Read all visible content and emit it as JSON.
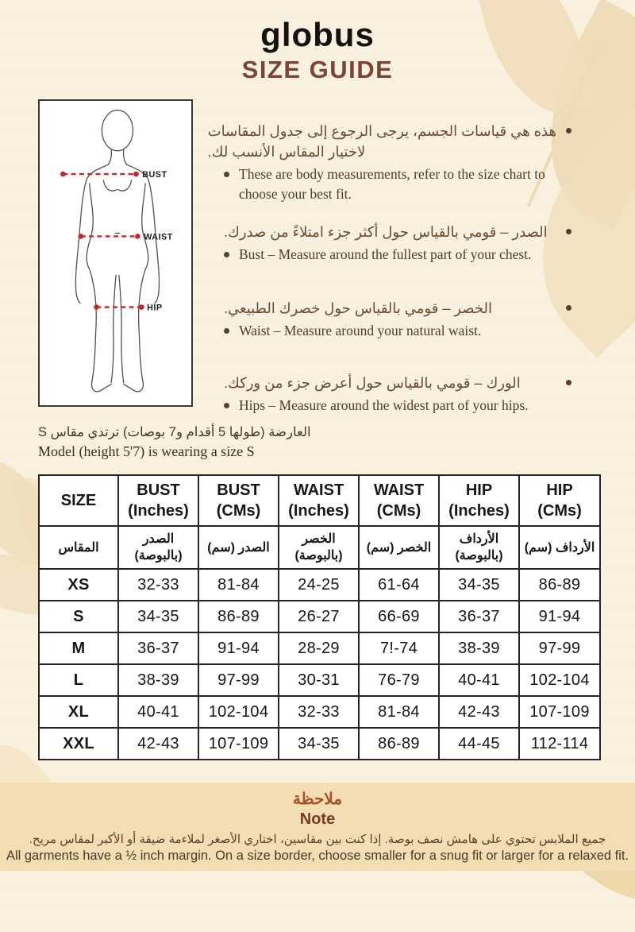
{
  "brand": "globus",
  "title": "SIZE GUIDE",
  "figure": {
    "labels": {
      "bust": "BUST",
      "waist": "WAIST",
      "hip": "HIP"
    }
  },
  "bullets": [
    {
      "ar_lines": [
        "هذه هي قياسات الجسم، يرجى الرجوع إلى جدول المقاسات",
        "لاختيار المقاس الأنسب لك."
      ],
      "en_lines": [
        "These are body measurements, refer to the size chart to",
        "choose your best fit."
      ]
    },
    {
      "ar_lines": [
        "الصدر – قومي بالقياس حول أكثر جزء امتلاءً من صدرك."
      ],
      "en_lines": [
        "Bust – Measure around the fullest part of your chest."
      ]
    },
    {
      "ar_lines": [
        "الخصر – قومي بالقياس حول خصرك الطبيعي."
      ],
      "en_lines": [
        "Waist – Measure around your natural waist."
      ]
    },
    {
      "ar_lines": [
        "الورك – قومي بالقياس حول أعرض جزء من وركك."
      ],
      "en_lines": [
        "Hips – Measure around the widest part of your hips."
      ]
    }
  ],
  "model_note": {
    "ar": "العارضة (طولها 5 أقدام و7 بوصات) ترتدي مقاس S",
    "en": "Model (height 5'7) is wearing a size S"
  },
  "table": {
    "headers_en": [
      [
        "SIZE"
      ],
      [
        "BUST",
        "(Inches)"
      ],
      [
        "BUST",
        "(CMs)"
      ],
      [
        "WAIST",
        "(Inches)"
      ],
      [
        "WAIST",
        "(CMs)"
      ],
      [
        "HIP",
        "(Inches)"
      ],
      [
        "HIP",
        "(CMs)"
      ]
    ],
    "headers_ar": [
      [
        "المقاس"
      ],
      [
        "الصدر",
        "(بالبوصة)"
      ],
      [
        "الصدر (سم)"
      ],
      [
        "الخصر",
        "(بالبوصة)"
      ],
      [
        "الخصر (سم)"
      ],
      [
        "الأرداف",
        "(بالبوصة)"
      ],
      [
        "الأرداف (سم)"
      ]
    ],
    "rows": [
      [
        "XS",
        "32-33",
        "81-84",
        "24-25",
        "61-64",
        "34-35",
        "86-89"
      ],
      [
        "S",
        "34-35",
        "86-89",
        "26-27",
        "66-69",
        "36-37",
        "91-94"
      ],
      [
        "M",
        "36-37",
        "91-94",
        "28-29",
        "7!-74",
        "38-39",
        "97-99"
      ],
      [
        "L",
        "38-39",
        "97-99",
        "30-31",
        "76-79",
        "40-41",
        "102-104"
      ],
      [
        "XL",
        "40-41",
        "102-104",
        "32-33",
        "81-84",
        "42-43",
        "107-109"
      ],
      [
        "XXL",
        "42-43",
        "107-109",
        "34-35",
        "86-89",
        "44-45",
        "112-114"
      ]
    ]
  },
  "footer": {
    "heading_ar": "ملاحظة",
    "heading_en": "Note",
    "note_ar": "جميع الملابس تحتوي على هامش نصف بوصة. إذا كنت بين مقاسين، اختاري الأصغر لملاءمة ضيقة أو الأكبر لمقاس مريح.",
    "note_en": "All garments have a ½ inch margin. On a size border, choose smaller for a snug fit or larger for a relaxed fit."
  },
  "colors": {
    "page_background": "#f8efdc",
    "leaf_decoration": "#efddb9",
    "footer_band": "#f3ddb2",
    "title_brown": "#7c4434",
    "note_heading_ar": "#a5512b",
    "note_heading_en": "#7b3a28",
    "measurement_red": "#c1272d"
  }
}
